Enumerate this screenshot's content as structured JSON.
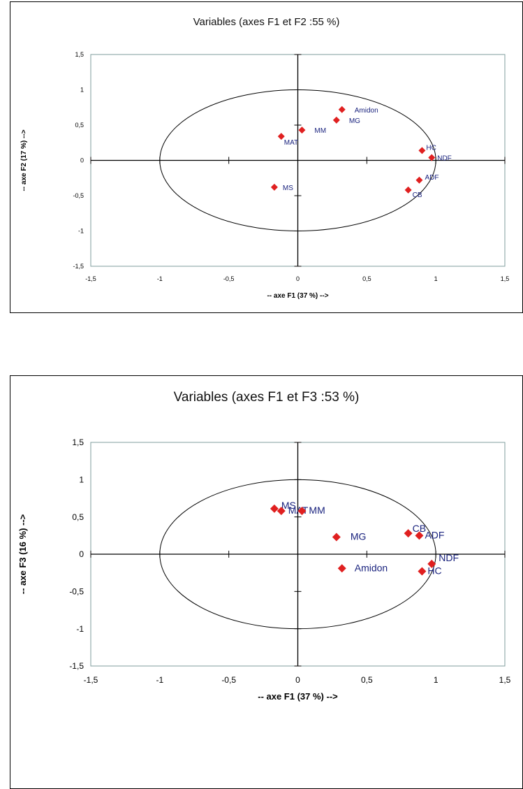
{
  "chart_data": [
    {
      "type": "scatter",
      "title": "Variables (axes F1 et F2 :55 %)",
      "xlabel": "-- axe F1 (37 %) -->",
      "ylabel": "-- axe F2 (17 %) -->",
      "xlim": [
        -1.5,
        1.5
      ],
      "ylim": [
        -1.5,
        1.5
      ],
      "x_ticks": [
        "-1,5",
        "-1",
        "-0,5",
        "0",
        "0,5",
        "1",
        "1,5"
      ],
      "y_ticks": [
        "1,5",
        "1",
        "0,5",
        "0",
        "-0,5",
        "-1",
        "-1,5"
      ],
      "unit_circle": true,
      "grid": false,
      "points": [
        {
          "label": "Amidon",
          "x": 0.32,
          "y": 0.72
        },
        {
          "label": "MG",
          "x": 0.28,
          "y": 0.57
        },
        {
          "label": "MM",
          "x": 0.03,
          "y": 0.43
        },
        {
          "label": "MAT",
          "x": -0.12,
          "y": 0.34
        },
        {
          "label": "HC",
          "x": 0.9,
          "y": 0.14
        },
        {
          "label": "NDF",
          "x": 0.97,
          "y": 0.04
        },
        {
          "label": "ADF",
          "x": 0.88,
          "y": -0.28
        },
        {
          "label": "CB",
          "x": 0.8,
          "y": -0.42
        },
        {
          "label": "MS",
          "x": -0.17,
          "y": -0.38
        }
      ]
    },
    {
      "type": "scatter",
      "title": "Variables (axes F1 et F3 :53 %)",
      "xlabel": "-- axe F1 (37 %) -->",
      "ylabel": "-- axe F3 (16 %) -->",
      "xlim": [
        -1.5,
        1.5
      ],
      "ylim": [
        -1.5,
        1.5
      ],
      "x_ticks": [
        "-1,5",
        "-1",
        "-0,5",
        "0",
        "0,5",
        "1",
        "1,5"
      ],
      "y_ticks": [
        "1,5",
        "1",
        "0,5",
        "0",
        "-0,5",
        "-1",
        "-1,5"
      ],
      "unit_circle": true,
      "grid": false,
      "points": [
        {
          "label": "MS",
          "x": -0.17,
          "y": 0.61
        },
        {
          "label": "MAT",
          "x": -0.12,
          "y": 0.58
        },
        {
          "label": "MM",
          "x": 0.03,
          "y": 0.58
        },
        {
          "label": "MG",
          "x": 0.28,
          "y": 0.23
        },
        {
          "label": "CB",
          "x": 0.8,
          "y": 0.28
        },
        {
          "label": "ADF",
          "x": 0.88,
          "y": 0.25
        },
        {
          "label": "NDF",
          "x": 0.97,
          "y": -0.13
        },
        {
          "label": "HC",
          "x": 0.9,
          "y": -0.23
        },
        {
          "label": "Amidon",
          "x": 0.32,
          "y": -0.19
        }
      ]
    }
  ],
  "colors": {
    "marker": "#e02020",
    "point_label": "#1a237e",
    "plot_border": "#7f9c9c"
  }
}
